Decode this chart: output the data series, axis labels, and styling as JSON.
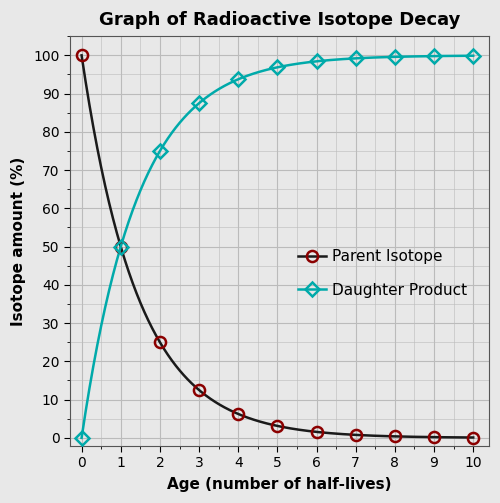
{
  "title": "Graph of Radioactive Isotope Decay",
  "xlabel": "Age (number of half-lives)",
  "ylabel": "Isotope amount (%)",
  "x": [
    0,
    1,
    2,
    3,
    4,
    5,
    6,
    7,
    8,
    9,
    10
  ],
  "parent_y": [
    100,
    50,
    25,
    12.5,
    6.25,
    3.125,
    1.5625,
    0.78125,
    0.390625,
    0.195313,
    0.097656
  ],
  "daughter_y": [
    0,
    50,
    75,
    87.5,
    93.75,
    96.875,
    98.4375,
    99.21875,
    99.609375,
    99.804688,
    99.902344
  ],
  "parent_line_color": "#1a1a1a",
  "parent_marker_color": "#8b0000",
  "daughter_color": "#00aaaa",
  "xlim": [
    -0.3,
    10.4
  ],
  "ylim": [
    -2,
    105
  ],
  "xticks": [
    0,
    1,
    2,
    3,
    4,
    5,
    6,
    7,
    8,
    9,
    10
  ],
  "yticks": [
    0,
    10,
    20,
    30,
    40,
    50,
    60,
    70,
    80,
    90,
    100
  ],
  "grid_color": "#bbbbbb",
  "background_color": "#e8e8e8",
  "plot_bg_color": "#e8e8e8",
  "title_fontsize": 13,
  "label_fontsize": 11,
  "tick_fontsize": 10,
  "legend_fontsize": 11,
  "parent_label": "Parent Isotope",
  "daughter_label": "Daughter Product"
}
